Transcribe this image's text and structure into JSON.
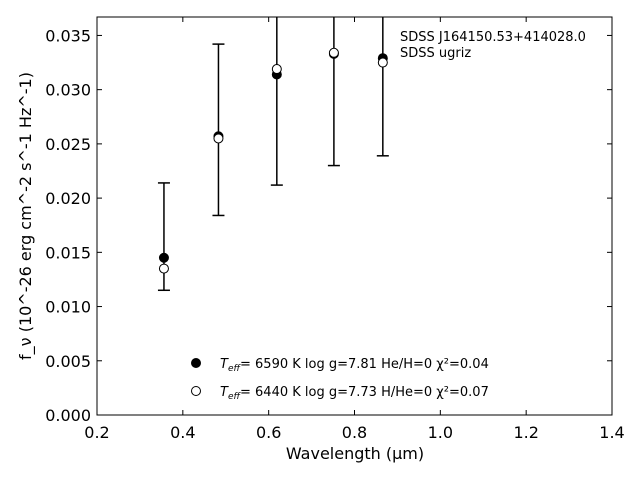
{
  "chart_data": {
    "type": "scatter",
    "xlabel": "Wavelength (μm)",
    "ylabel": "f_ν (10^-26 erg cm^-2 s^-1 Hz^-1)",
    "xlim": [
      0.2,
      1.4
    ],
    "ylim": [
      0.0,
      0.0367
    ],
    "x_ticks": [
      0.2,
      0.4,
      0.6,
      0.8,
      1.0,
      1.2,
      1.4
    ],
    "x_tick_labels": [
      "0.2",
      "0.4",
      "0.6",
      "0.8",
      "1.0",
      "1.2",
      "1.4"
    ],
    "y_ticks": [
      0.0,
      0.005,
      0.01,
      0.015,
      0.02,
      0.025,
      0.03,
      0.035
    ],
    "y_tick_labels": [
      "0.000",
      "0.005",
      "0.010",
      "0.015",
      "0.020",
      "0.025",
      "0.030",
      "0.035"
    ],
    "grid": false,
    "legend_position": "bottom-center",
    "annotations": [
      "SDSS J164150.53+414028.0",
      "SDSS ugriz"
    ],
    "observed_errorbars": {
      "x": [
        0.356,
        0.483,
        0.619,
        0.752,
        0.866
      ],
      "lower": [
        0.0115,
        0.0184,
        0.0212,
        0.023,
        0.0239
      ],
      "upper": [
        0.0214,
        0.0342,
        0.0405,
        0.043,
        0.042
      ]
    },
    "series": [
      {
        "marker": "filled-circle",
        "legend_teff_prefix": "T",
        "legend_teff_sub": "eff",
        "legend_rest": "= 6590 K  log g=7.81  He/H=0  χ²=0.04",
        "x": [
          0.356,
          0.483,
          0.619,
          0.752,
          0.866
        ],
        "y": [
          0.0145,
          0.0257,
          0.0314,
          0.0333,
          0.0329
        ]
      },
      {
        "marker": "open-circle",
        "legend_teff_prefix": "T",
        "legend_teff_sub": "eff",
        "legend_rest": "= 6440 K  log g=7.73  H/He=0  χ²=0.07",
        "x": [
          0.356,
          0.483,
          0.619,
          0.752,
          0.866
        ],
        "y": [
          0.0135,
          0.0255,
          0.0319,
          0.0334,
          0.0325
        ]
      }
    ]
  }
}
